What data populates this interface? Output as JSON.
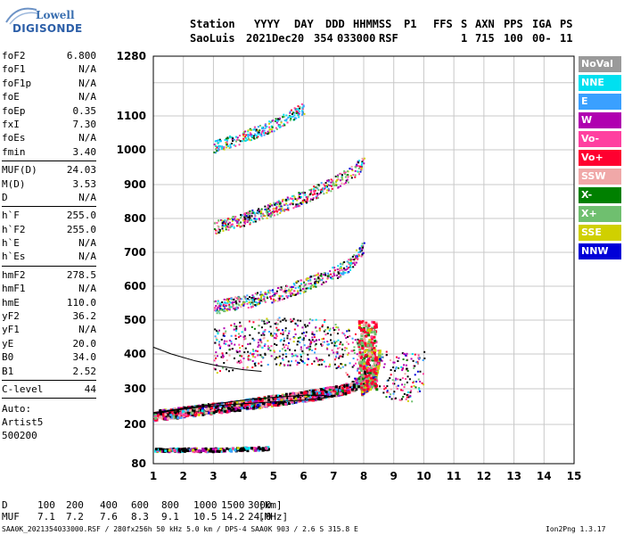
{
  "logo": {
    "line1": "Lowell",
    "line2": "DIGISONDE"
  },
  "header": {
    "labels": [
      "Station",
      "YYYY",
      "DAY",
      "DDD",
      "HHMMSS",
      "P1",
      "FFS",
      "S",
      "AXN",
      "PPS",
      "IGA",
      "PS"
    ],
    "values": [
      "SaoLuis",
      "2021",
      "Dec20",
      "354",
      "033000",
      "RSF",
      "1",
      "715",
      "100",
      "00-",
      "11"
    ]
  },
  "params": {
    "group1": [
      {
        "name": "foF2",
        "value": "6.800"
      },
      {
        "name": "foF1",
        "value": "N/A"
      },
      {
        "name": "foF1p",
        "value": "N/A"
      },
      {
        "name": "foE",
        "value": "N/A"
      },
      {
        "name": "foEp",
        "value": "0.35"
      },
      {
        "name": "fxI",
        "value": "7.30"
      },
      {
        "name": "foEs",
        "value": "N/A"
      },
      {
        "name": "fmin",
        "value": "3.40"
      }
    ],
    "group2": [
      {
        "name": "MUF(D)",
        "value": "24.03"
      },
      {
        "name": "M(D)",
        "value": "3.53"
      },
      {
        "name": "D",
        "value": "N/A"
      }
    ],
    "group3": [
      {
        "name": "h`F",
        "value": "255.0"
      },
      {
        "name": "h`F2",
        "value": "255.0"
      },
      {
        "name": "h`E",
        "value": "N/A"
      },
      {
        "name": "h`Es",
        "value": "N/A"
      }
    ],
    "group4": [
      {
        "name": "hmF2",
        "value": "278.5"
      },
      {
        "name": "hmF1",
        "value": "N/A"
      },
      {
        "name": "hmE",
        "value": "110.0"
      },
      {
        "name": "yF2",
        "value": "36.2"
      },
      {
        "name": "yF1",
        "value": "N/A"
      },
      {
        "name": "yE",
        "value": "20.0"
      },
      {
        "name": "B0",
        "value": "34.0"
      },
      {
        "name": "B1",
        "value": "2.52"
      }
    ],
    "group5": [
      {
        "name": "C-level",
        "value": "44"
      }
    ],
    "auto": [
      "Auto:",
      "Artist5",
      "500200"
    ]
  },
  "legend": [
    {
      "label": "NoVal",
      "color": "#9a9a9a"
    },
    {
      "label": "NNE",
      "color": "#00e0f0"
    },
    {
      "label": "E",
      "color": "#3aa0ff"
    },
    {
      "label": "W",
      "color": "#b000b0"
    },
    {
      "label": "Vo-",
      "color": "#ff40a0"
    },
    {
      "label": "Vo+",
      "color": "#ff0030"
    },
    {
      "label": "SSW",
      "color": "#f0a8a8"
    },
    {
      "label": "X-",
      "color": "#008000"
    },
    {
      "label": "X+",
      "color": "#6fbf6f"
    },
    {
      "label": "SSE",
      "color": "#d0d000"
    },
    {
      "label": "NNW",
      "color": "#0000d8"
    }
  ],
  "bottom": {
    "d_row": {
      "label": "D",
      "values": [
        "100",
        "200",
        "400",
        "600",
        "800",
        "1000",
        "1500",
        "3000"
      ],
      "unit": "[km]"
    },
    "muf_row": {
      "label": "MUF",
      "values": [
        "7.1",
        "7.2",
        "7.6",
        "8.3",
        "9.1",
        "10.5",
        "14.2",
        "24.0"
      ],
      "unit": "[MHz]"
    },
    "footer_left": "SAA0K_2021354033000.RSF / 280fx256h 50 kHz 5.0 km / DPS-4 SAA0K 903 / 2.6 S 315.8 E",
    "footer_right": "Ion2Png 1.3.17"
  },
  "chart_data": {
    "type": "scatter",
    "title": "",
    "xlabel": "",
    "ylabel": "",
    "x_ticks": [
      1,
      2,
      3,
      4,
      5,
      6,
      7,
      8,
      9,
      10,
      11,
      12,
      13,
      14,
      15
    ],
    "y_ticks": [
      80,
      200,
      300,
      400,
      500,
      600,
      700,
      800,
      900,
      1000,
      1100,
      1280
    ],
    "xlim": [
      1,
      15
    ],
    "ylim": [
      80,
      1280
    ],
    "grid": true,
    "traces": [
      {
        "name": "F2 O-trace",
        "points": [
          [
            1.0,
            228
          ],
          [
            1.5,
            232
          ],
          [
            2.0,
            238
          ],
          [
            2.5,
            243
          ],
          [
            3.0,
            248
          ],
          [
            3.5,
            253
          ],
          [
            4.0,
            258
          ],
          [
            4.5,
            264
          ],
          [
            5.0,
            270
          ],
          [
            5.5,
            276
          ],
          [
            6.0,
            282
          ],
          [
            6.5,
            288
          ],
          [
            7.0,
            296
          ],
          [
            7.5,
            305
          ],
          [
            7.8,
            320
          ],
          [
            8.0,
            345
          ],
          [
            8.1,
            380
          ],
          [
            8.2,
            430
          ]
        ]
      },
      {
        "name": "F2 X-trace",
        "points": [
          [
            7.9,
            300
          ],
          [
            8.2,
            320
          ],
          [
            8.4,
            360
          ],
          [
            8.5,
            400
          ]
        ]
      },
      {
        "name": "2-hop",
        "points": [
          [
            3.0,
            540
          ],
          [
            4.0,
            555
          ],
          [
            5.0,
            575
          ],
          [
            6.0,
            605
          ],
          [
            7.0,
            640
          ],
          [
            7.5,
            665
          ],
          [
            8.0,
            720
          ]
        ]
      },
      {
        "name": "3-hop",
        "points": [
          [
            3.0,
            775
          ],
          [
            4.0,
            800
          ],
          [
            5.0,
            830
          ],
          [
            6.0,
            865
          ],
          [
            7.0,
            905
          ],
          [
            7.5,
            930
          ],
          [
            8.0,
            965
          ]
        ]
      },
      {
        "name": "4-hop",
        "points": [
          [
            3.0,
            1010
          ],
          [
            4.0,
            1040
          ],
          [
            5.0,
            1075
          ],
          [
            6.0,
            1125
          ]
        ]
      },
      {
        "name": "E-region",
        "points": [
          [
            1.0,
            125
          ],
          [
            2.0,
            125
          ],
          [
            3.0,
            125
          ],
          [
            4.0,
            128
          ],
          [
            4.8,
            130
          ]
        ]
      },
      {
        "name": "spread echoes",
        "points": [
          [
            3.0,
            410
          ],
          [
            4.0,
            430
          ],
          [
            5.0,
            440
          ],
          [
            6.0,
            440
          ],
          [
            7.0,
            430
          ],
          [
            8.8,
            345
          ],
          [
            9.5,
            335
          ],
          [
            10.0,
            340
          ]
        ]
      }
    ],
    "profile_curve": [
      [
        1.0,
        230
      ],
      [
        2.0,
        243
      ],
      [
        3.0,
        252
      ],
      [
        4.0,
        258
      ],
      [
        5.0,
        263
      ],
      [
        6.0,
        268
      ],
      [
        6.6,
        273
      ],
      [
        6.9,
        278
      ],
      [
        6.6,
        282
      ],
      [
        6.0,
        282
      ],
      [
        5.0,
        276
      ],
      [
        4.0,
        268
      ],
      [
        3.0,
        257
      ],
      [
        2.0,
        245
      ],
      [
        1.0,
        233
      ]
    ],
    "profile_upper": [
      [
        1.0,
        420
      ],
      [
        1.6,
        400
      ],
      [
        2.4,
        380
      ],
      [
        3.2,
        365
      ],
      [
        4.0,
        355
      ],
      [
        4.6,
        350
      ]
    ]
  }
}
